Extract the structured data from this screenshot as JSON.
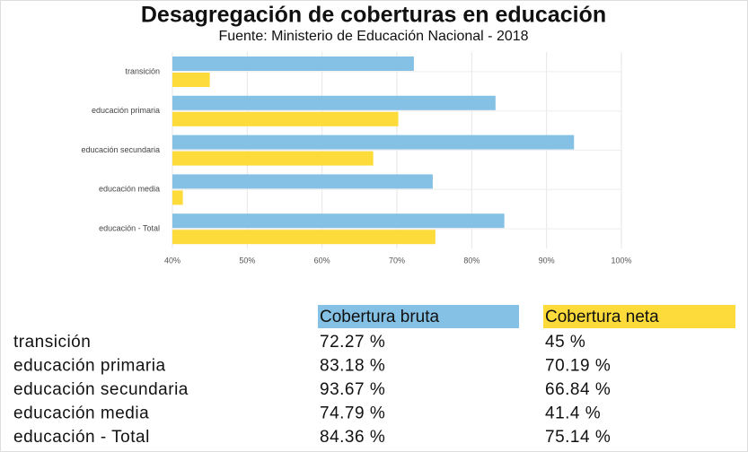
{
  "chart_data": {
    "type": "bar",
    "orientation": "horizontal",
    "title": "Desagregación de coberturas en educación",
    "subtitle": "Fuente: Ministerio de Educación Nacional - 2018",
    "categories": [
      "transición",
      "educación primaria",
      "educación secundaria",
      "educación media",
      "educación - Total"
    ],
    "series": [
      {
        "name": "Cobertura bruta",
        "color": "#85c1e5",
        "values": [
          72.27,
          83.18,
          93.67,
          74.79,
          84.36
        ],
        "value_labels": [
          "72.27 %",
          "83.18 %",
          "93.67 %",
          "74.79 %",
          "84.36 %"
        ]
      },
      {
        "name": "Cobertura neta",
        "color": "#fddb3a",
        "values": [
          45,
          70.19,
          66.84,
          41.4,
          75.14
        ],
        "value_labels": [
          "45 %",
          "70.19 %",
          "66.84 %",
          "41.4 %",
          "75.14 %"
        ]
      }
    ],
    "xlim": [
      40,
      100
    ],
    "xticks": [
      {
        "value": 40,
        "label": "40%"
      },
      {
        "value": 50,
        "label": "50%"
      },
      {
        "value": 60,
        "label": "60%"
      },
      {
        "value": 70,
        "label": "70%"
      },
      {
        "value": 80,
        "label": "80%"
      },
      {
        "value": 90,
        "label": "90%"
      },
      {
        "value": 100,
        "label": "100%"
      }
    ],
    "grid": true
  }
}
